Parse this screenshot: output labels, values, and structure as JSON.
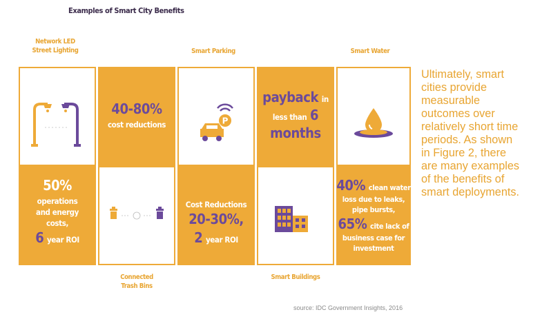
{
  "title": "Examples of Smart City Benefits",
  "columns": {
    "lighting": {
      "label_line1": "Network LED",
      "label_line2": "Street Lighting",
      "stat_pct": "50%",
      "stat_line1": "operations",
      "stat_line2": "and energy",
      "stat_line3": "costs,",
      "stat_num": "6",
      "stat_tail": "year ROI"
    },
    "trash": {
      "stat_range": "40-80%",
      "stat_text": "cost reductions",
      "label_line1": "Connected",
      "label_line2": "Trash Bins"
    },
    "parking": {
      "label": "Smart Parking",
      "icon_letter": "P",
      "stat_line1": "Cost Reductions",
      "stat_range": "20-30%,",
      "stat_num": "2",
      "stat_tail": "year ROI"
    },
    "buildings": {
      "payback_word": "payback",
      "payback_in": "in",
      "payback_less": "less than",
      "payback_num": "6",
      "payback_unit": "months",
      "label": "Smart Buildings"
    },
    "water": {
      "label": "Smart Water",
      "pct1": "40%",
      "line1": "clean water",
      "line2": "loss due to leaks,",
      "line3": "pipe bursts,",
      "pct2": "65%",
      "line4": "cite lack of",
      "line5": "business case for",
      "line6": "investment"
    }
  },
  "body_text": [
    "Ultimately, smart",
    "cities provide",
    "measurable",
    "outcomes over",
    "relatively short time",
    "periods.  As shown",
    "in Figure 2, there",
    "are many examples",
    "of the benefits of",
    "smart deployments."
  ],
  "source": "source: IDC Government Insights, 2016",
  "colors": {
    "orange": "#eeaa38",
    "purple": "#6b4a9b",
    "white": "#ffffff"
  }
}
